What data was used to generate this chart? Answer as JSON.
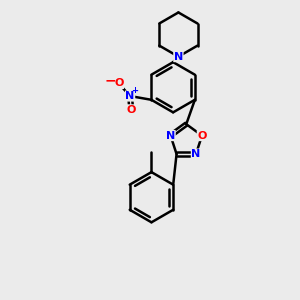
{
  "bg_color": "#ebebeb",
  "bond_color": "#000000",
  "atom_colors": {
    "N": "#0000ff",
    "O": "#ff0000",
    "C": "#000000"
  },
  "bond_width": 1.8,
  "figsize": [
    3.0,
    3.0
  ],
  "dpi": 100
}
